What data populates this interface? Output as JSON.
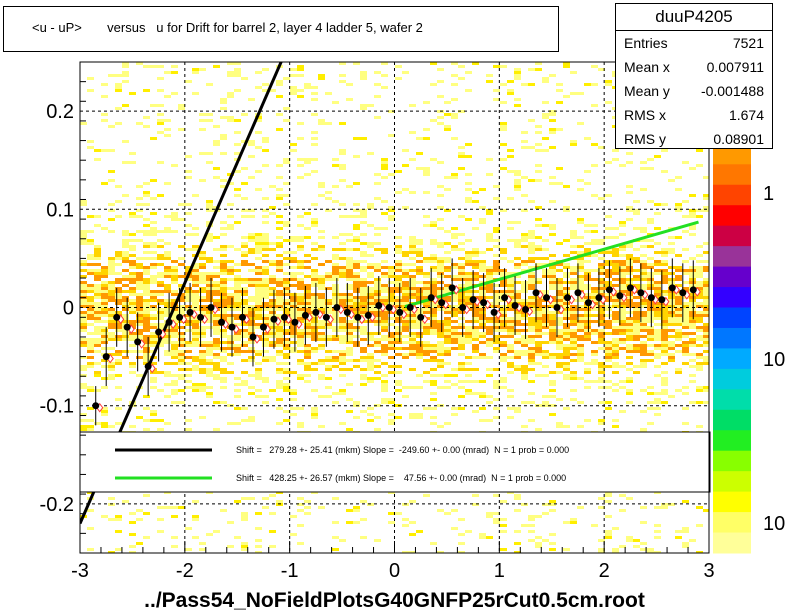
{
  "title": "<u - uP>       versus   u for Drift for barrel 2, layer 4 ladder 5, wafer 2",
  "stats": {
    "name": "duuP4205",
    "rows": [
      {
        "key": "Entries",
        "value": "7521"
      },
      {
        "key": "Mean x",
        "value": "0.007911"
      },
      {
        "key": "Mean y",
        "value": "-0.001488"
      },
      {
        "key": "RMS x",
        "value": "1.674"
      },
      {
        "key": "RMS y",
        "value": "0.08901"
      }
    ]
  },
  "footer": "../Pass54_NoFieldPlotsG40GNFP25rCut0.5cm.root",
  "colors": {
    "fit1": "#000000",
    "fit2": "#22e022",
    "profile": "#000000",
    "profile2": "#ff3b3b"
  },
  "chart_data": {
    "type": "scatter",
    "xlim": [
      -3,
      3
    ],
    "ylim": [
      -0.25,
      0.25
    ],
    "x_ticks": [
      "-3",
      "-2",
      "-1",
      "0",
      "1",
      "2",
      "3"
    ],
    "y_ticks": [
      "-0.2",
      "-0.1",
      "0",
      "0.1",
      "0.2"
    ],
    "grid": true,
    "legend_position": "bottom-center",
    "colorbar_labels": [
      "1",
      "10",
      "10"
    ],
    "fits": [
      {
        "label": "Shift =   279.28 +- 25.41 (mkm) Slope =  -249.60 +- 0.00 (mrad)  N = 1 prob = 0.000",
        "x": [
          -3.0,
          -1.0
        ],
        "y": [
          -0.22,
          0.27
        ]
      },
      {
        "label": "Shift =   428.25 +- 26.57 (mkm) Slope =    47.56 +- 0.00 (mrad)  N = 1 prob = 0.000",
        "x": [
          0.1,
          2.9
        ],
        "y": [
          0.001,
          0.087
        ]
      }
    ],
    "profile": {
      "x": [
        -2.85,
        -2.75,
        -2.65,
        -2.55,
        -2.45,
        -2.35,
        -2.25,
        -2.15,
        -2.05,
        -1.95,
        -1.85,
        -1.75,
        -1.65,
        -1.55,
        -1.45,
        -1.35,
        -1.25,
        -1.15,
        -1.05,
        -0.95,
        -0.85,
        -0.75,
        -0.65,
        -0.55,
        -0.45,
        -0.35,
        -0.25,
        -0.15,
        -0.05,
        0.05,
        0.15,
        0.25,
        0.35,
        0.45,
        0.55,
        0.65,
        0.75,
        0.85,
        0.95,
        1.05,
        1.15,
        1.25,
        1.35,
        1.45,
        1.55,
        1.65,
        1.75,
        1.85,
        1.95,
        2.05,
        2.15,
        2.25,
        2.35,
        2.45,
        2.55,
        2.65,
        2.75,
        2.85
      ],
      "y": [
        -0.1,
        -0.05,
        -0.01,
        -0.02,
        -0.035,
        -0.06,
        -0.025,
        -0.015,
        -0.01,
        -0.005,
        -0.01,
        0.0,
        -0.015,
        -0.02,
        -0.01,
        -0.03,
        -0.02,
        -0.012,
        -0.01,
        -0.015,
        -0.008,
        -0.005,
        -0.01,
        0.0,
        -0.005,
        -0.01,
        -0.008,
        0.002,
        0.0,
        -0.005,
        0.0,
        -0.01,
        0.01,
        0.005,
        0.02,
        0.0,
        0.008,
        0.005,
        -0.005,
        0.01,
        0.002,
        -0.002,
        0.015,
        0.01,
        0.0,
        0.01,
        0.015,
        0.005,
        0.01,
        0.018,
        0.012,
        0.02,
        0.015,
        0.01,
        0.008,
        0.02,
        0.015,
        0.018
      ],
      "err": [
        0.02,
        0.03,
        0.03,
        0.03,
        0.03,
        0.03,
        0.03,
        0.03,
        0.03,
        0.03,
        0.03,
        0.03,
        0.03,
        0.03,
        0.03,
        0.03,
        0.03,
        0.03,
        0.03,
        0.03,
        0.03,
        0.03,
        0.03,
        0.03,
        0.03,
        0.03,
        0.03,
        0.03,
        0.03,
        0.03,
        0.03,
        0.03,
        0.03,
        0.03,
        0.03,
        0.03,
        0.03,
        0.03,
        0.03,
        0.03,
        0.03,
        0.03,
        0.03,
        0.03,
        0.03,
        0.03,
        0.03,
        0.03,
        0.03,
        0.03,
        0.03,
        0.03,
        0.03,
        0.03,
        0.03,
        0.03,
        0.03,
        0.03
      ]
    }
  }
}
